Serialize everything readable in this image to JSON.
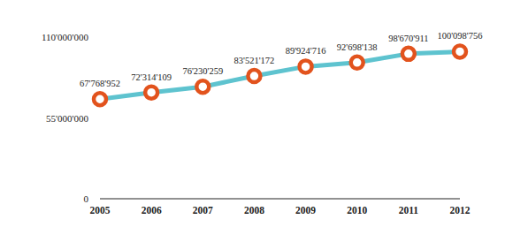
{
  "chart_data": {
    "type": "line",
    "categories": [
      "2005",
      "2006",
      "2007",
      "2008",
      "2009",
      "2010",
      "2011",
      "2012"
    ],
    "values": [
      67768952,
      72314109,
      76230259,
      83521172,
      89924716,
      92698138,
      98670911,
      100098756
    ],
    "value_labels": [
      "67'768'952",
      "72'314'109",
      "76'230'259",
      "83'521'172",
      "89'924'716",
      "92'698'138",
      "98'670'911",
      "100'098'756"
    ],
    "color": "#5ec3cf",
    "marker": "circle",
    "data_labels": true,
    "grid": false,
    "ylim": [
      0,
      110000000
    ],
    "yticks": [
      0,
      {
        "value": 55000000,
        "label": "55'000'000"
      },
      {
        "value": 110000000,
        "label": "110'000'000"
      }
    ]
  }
}
